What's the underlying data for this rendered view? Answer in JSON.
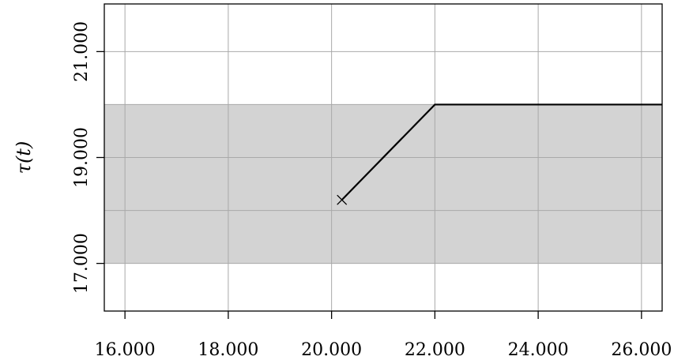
{
  "chart_data": {
    "type": "line",
    "title": "",
    "xlabel": "",
    "ylabel": "τ(t)",
    "xlim": [
      15.6,
      26.4
    ],
    "ylim": [
      16.1,
      21.9
    ],
    "grid": true,
    "x_ticks": [
      {
        "value": 16,
        "label": "16.000"
      },
      {
        "value": 18,
        "label": "18.000"
      },
      {
        "value": 20,
        "label": "20.000"
      },
      {
        "value": 22,
        "label": "22.000"
      },
      {
        "value": 24,
        "label": "24.000"
      },
      {
        "value": 26,
        "label": "26.000"
      }
    ],
    "y_ticks": [
      {
        "value": 17,
        "label": "17.000"
      },
      {
        "value": 19,
        "label": "19.000"
      },
      {
        "value": 21,
        "label": "21.000"
      }
    ],
    "x_grid": [
      16,
      18,
      20,
      22,
      24,
      26
    ],
    "y_grid": [
      17,
      18,
      19,
      20,
      21
    ],
    "band": {
      "y_min": 17,
      "y_max": 20,
      "color": "#d3d3d3"
    },
    "series": [
      {
        "points": [
          [
            20.2,
            18.2
          ],
          [
            22.0,
            20.0
          ],
          [
            26.4,
            20.0
          ]
        ],
        "color": "#000000"
      }
    ],
    "start_marker": {
      "x": 20.2,
      "y": 18.2,
      "symbol": "x"
    }
  }
}
